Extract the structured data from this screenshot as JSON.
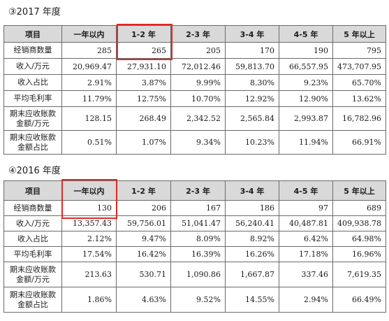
{
  "section1": {
    "title": "③2017 年度",
    "headers": [
      "项目",
      "一年以内",
      "1-2 年",
      "2-3 年",
      "3-4 年",
      "4-5 年",
      "5 年以上"
    ],
    "rows": [
      {
        "label": "经销商数量",
        "values": [
          "285",
          "265",
          "205",
          "170",
          "190",
          "795"
        ]
      },
      {
        "label": "收入/万元",
        "values": [
          "20,969.47",
          "27,931.10",
          "72,012.46",
          "59,813.70",
          "66,557.95",
          "473,707.95"
        ]
      },
      {
        "label": "收入占比",
        "values": [
          "2.91%",
          "3.87%",
          "9.99%",
          "8.30%",
          "9.23%",
          "65.70%"
        ]
      },
      {
        "label": "平均毛利率",
        "values": [
          "11.79%",
          "12.75%",
          "10.70%",
          "12.92%",
          "12.90%",
          "13.62%"
        ]
      },
      {
        "label": "期末应收账款金额/万元",
        "values": [
          "128.15",
          "268.49",
          "2,342.52",
          "2,565.84",
          "2,993.87",
          "16,782.96"
        ]
      },
      {
        "label": "期末应收账款金额占比",
        "values": [
          "0.51%",
          "1.07%",
          "9.34%",
          "10.23%",
          "11.94%",
          "66.91%"
        ]
      }
    ]
  },
  "section2": {
    "title": "④2016 年度",
    "headers": [
      "项目",
      "一年以内",
      "1-2 年",
      "2-3 年",
      "3-4 年",
      "4-5 年",
      "5 年以上"
    ],
    "rows": [
      {
        "label": "经销商数量",
        "values": [
          "130",
          "206",
          "167",
          "186",
          "97",
          "689"
        ]
      },
      {
        "label": "收入/万元",
        "values": [
          "13,357.43",
          "59,756.01",
          "51,041.47",
          "56,240.41",
          "40,487.81",
          "409,938.78"
        ]
      },
      {
        "label": "收入占比",
        "values": [
          "2.12%",
          "9.47%",
          "8.09%",
          "8.92%",
          "6.42%",
          "64.98%"
        ]
      },
      {
        "label": "平均毛利率",
        "values": [
          "17.54%",
          "16.42%",
          "16.39%",
          "16.26%",
          "17.18%",
          "16.96%"
        ]
      },
      {
        "label": "期末应收账款金额/万元",
        "values": [
          "213.63",
          "530.71",
          "1,090.86",
          "1,667.87",
          "337.46",
          "7,619.35"
        ]
      },
      {
        "label": "期末应收账款金额占比",
        "values": [
          "1.86%",
          "4.63%",
          "9.52%",
          "14.55%",
          "2.94%",
          "66.49%"
        ]
      }
    ]
  },
  "colors": {
    "highlight": "#e02a25",
    "header_bg": "#d9d9d9",
    "border": "#6a6a6a"
  }
}
